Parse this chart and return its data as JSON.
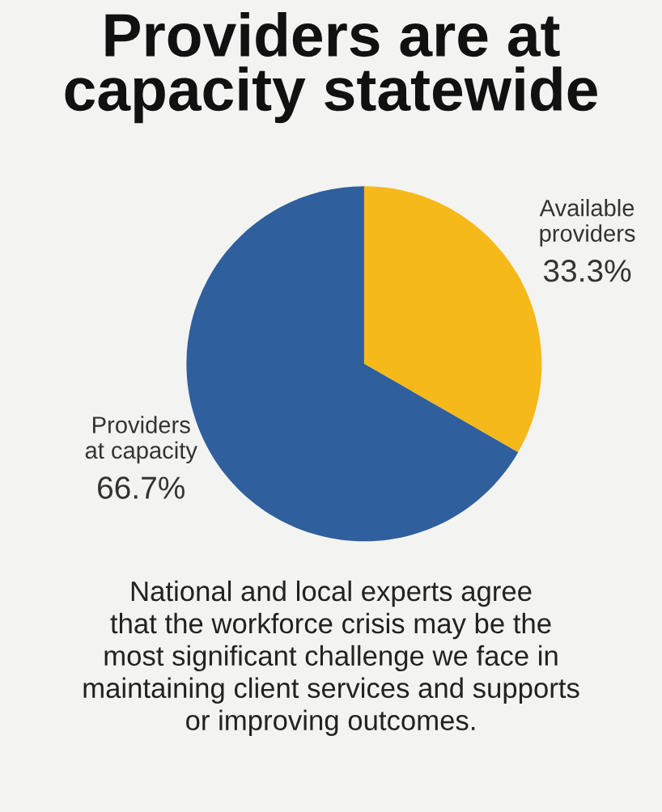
{
  "chart_data": {
    "type": "pie",
    "title": "Providers are at\ncapacity statewide",
    "categories": [
      "Available\nproviders",
      "Providers\nat capacity"
    ],
    "values": [
      33.3,
      66.7
    ],
    "colors": [
      "#f6b91a",
      "#2f5f9c"
    ],
    "value_labels": [
      "33.3%",
      "66.7%"
    ],
    "annotations": [
      "National and local experts agree\nthat the workforce crisis may be the\nmost significant challenge we face in\nmaintaining client services and supports\nor improving outcomes."
    ],
    "legend": false
  }
}
